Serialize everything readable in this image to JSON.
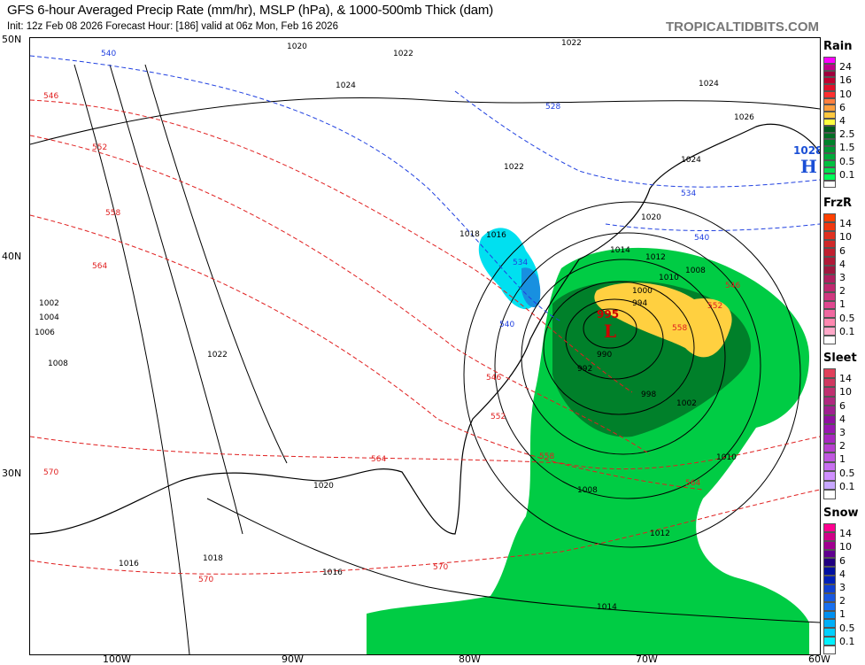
{
  "header": {
    "title": "GFS 6-hour Averaged Precip Rate (mm/hr), MSLP (hPa), & 1000-500mb Thick (dam)",
    "subtitle": "Init: 12z Feb 08 2026   Forecast Hour: [186]   valid at 06z Mon, Feb 16 2026",
    "brand": "TROPICALTIDBITS.COM"
  },
  "axes": {
    "lat_labels": [
      "50N",
      "40N",
      "30N"
    ],
    "lon_labels": [
      "100W",
      "90W",
      "80W",
      "70W",
      "60W"
    ]
  },
  "map": {
    "low_center": {
      "symbol": "L",
      "pressure": "995",
      "color": "#cc0000"
    },
    "high_center": {
      "symbol": "H",
      "pressure": "1028",
      "color": "#1a4fd6"
    },
    "isobar_labels": [
      "1020",
      "1022",
      "1024",
      "1022",
      "1024",
      "1026",
      "1024",
      "1022",
      "1020",
      "1016",
      "1018",
      "1014",
      "1012",
      "1010",
      "1008",
      "1000",
      "994",
      "990",
      "992",
      "998",
      "1002",
      "1010",
      "1008",
      "1012",
      "1014",
      "1022",
      "1020",
      "1018",
      "1016",
      "1016",
      "1002",
      "1004",
      "1006",
      "1008"
    ],
    "thickness_labels": [
      "540",
      "546",
      "552",
      "558",
      "564",
      "570",
      "528",
      "534",
      "540",
      "546",
      "552",
      "558",
      "546",
      "552",
      "558",
      "564",
      "570",
      "564",
      "570",
      "534",
      "540"
    ]
  },
  "legend": [
    {
      "title": "Rain",
      "labels": [
        "24",
        "16",
        "10",
        "6",
        "4",
        "2.5",
        "1.5",
        "0.5",
        "0.1"
      ],
      "colors": [
        "#ff00ff",
        "#c0008a",
        "#a0003c",
        "#c00030",
        "#e0102a",
        "#ff3030",
        "#ff7f3f",
        "#ffa040",
        "#ffc840",
        "#ffff40",
        "#005a1e",
        "#006e24",
        "#00822a",
        "#009632",
        "#00aa3a",
        "#00c040",
        "#00e050",
        "#00ff5a",
        "#ffffff"
      ]
    },
    {
      "title": "FrzR",
      "labels": [
        "14",
        "10",
        "6",
        "4",
        "3",
        "2",
        "1",
        "0.5",
        "0.1"
      ],
      "colors": [
        "#ff4000",
        "#f03810",
        "#e03020",
        "#d02828",
        "#c02030",
        "#b01a38",
        "#a01840",
        "#b02060",
        "#c02870",
        "#d03880",
        "#e04890",
        "#f068a0",
        "#ff88b0",
        "#ffa8c8",
        "#ffffff"
      ]
    },
    {
      "title": "Sleet",
      "labels": [
        "14",
        "10",
        "6",
        "4",
        "3",
        "2",
        "1",
        "0.5",
        "0.1"
      ],
      "colors": [
        "#e0405a",
        "#d03860",
        "#c03070",
        "#b02880",
        "#a02090",
        "#9010a0",
        "#9818b0",
        "#a828c0",
        "#b840d0",
        "#c058e0",
        "#c870f0",
        "#d090ff",
        "#c8a8ff",
        "#ffffff"
      ]
    },
    {
      "title": "Snow",
      "labels": [
        "14",
        "10",
        "6",
        "4",
        "3",
        "2",
        "1",
        "0.5",
        "0.1"
      ],
      "colors": [
        "#ff0090",
        "#d00088",
        "#a00090",
        "#600090",
        "#200080",
        "#0010a0",
        "#0020b8",
        "#1040d0",
        "#1858e0",
        "#1870f0",
        "#0090f0",
        "#00b0f8",
        "#00d0ff",
        "#00f0ff",
        "#ffffff"
      ]
    }
  ]
}
